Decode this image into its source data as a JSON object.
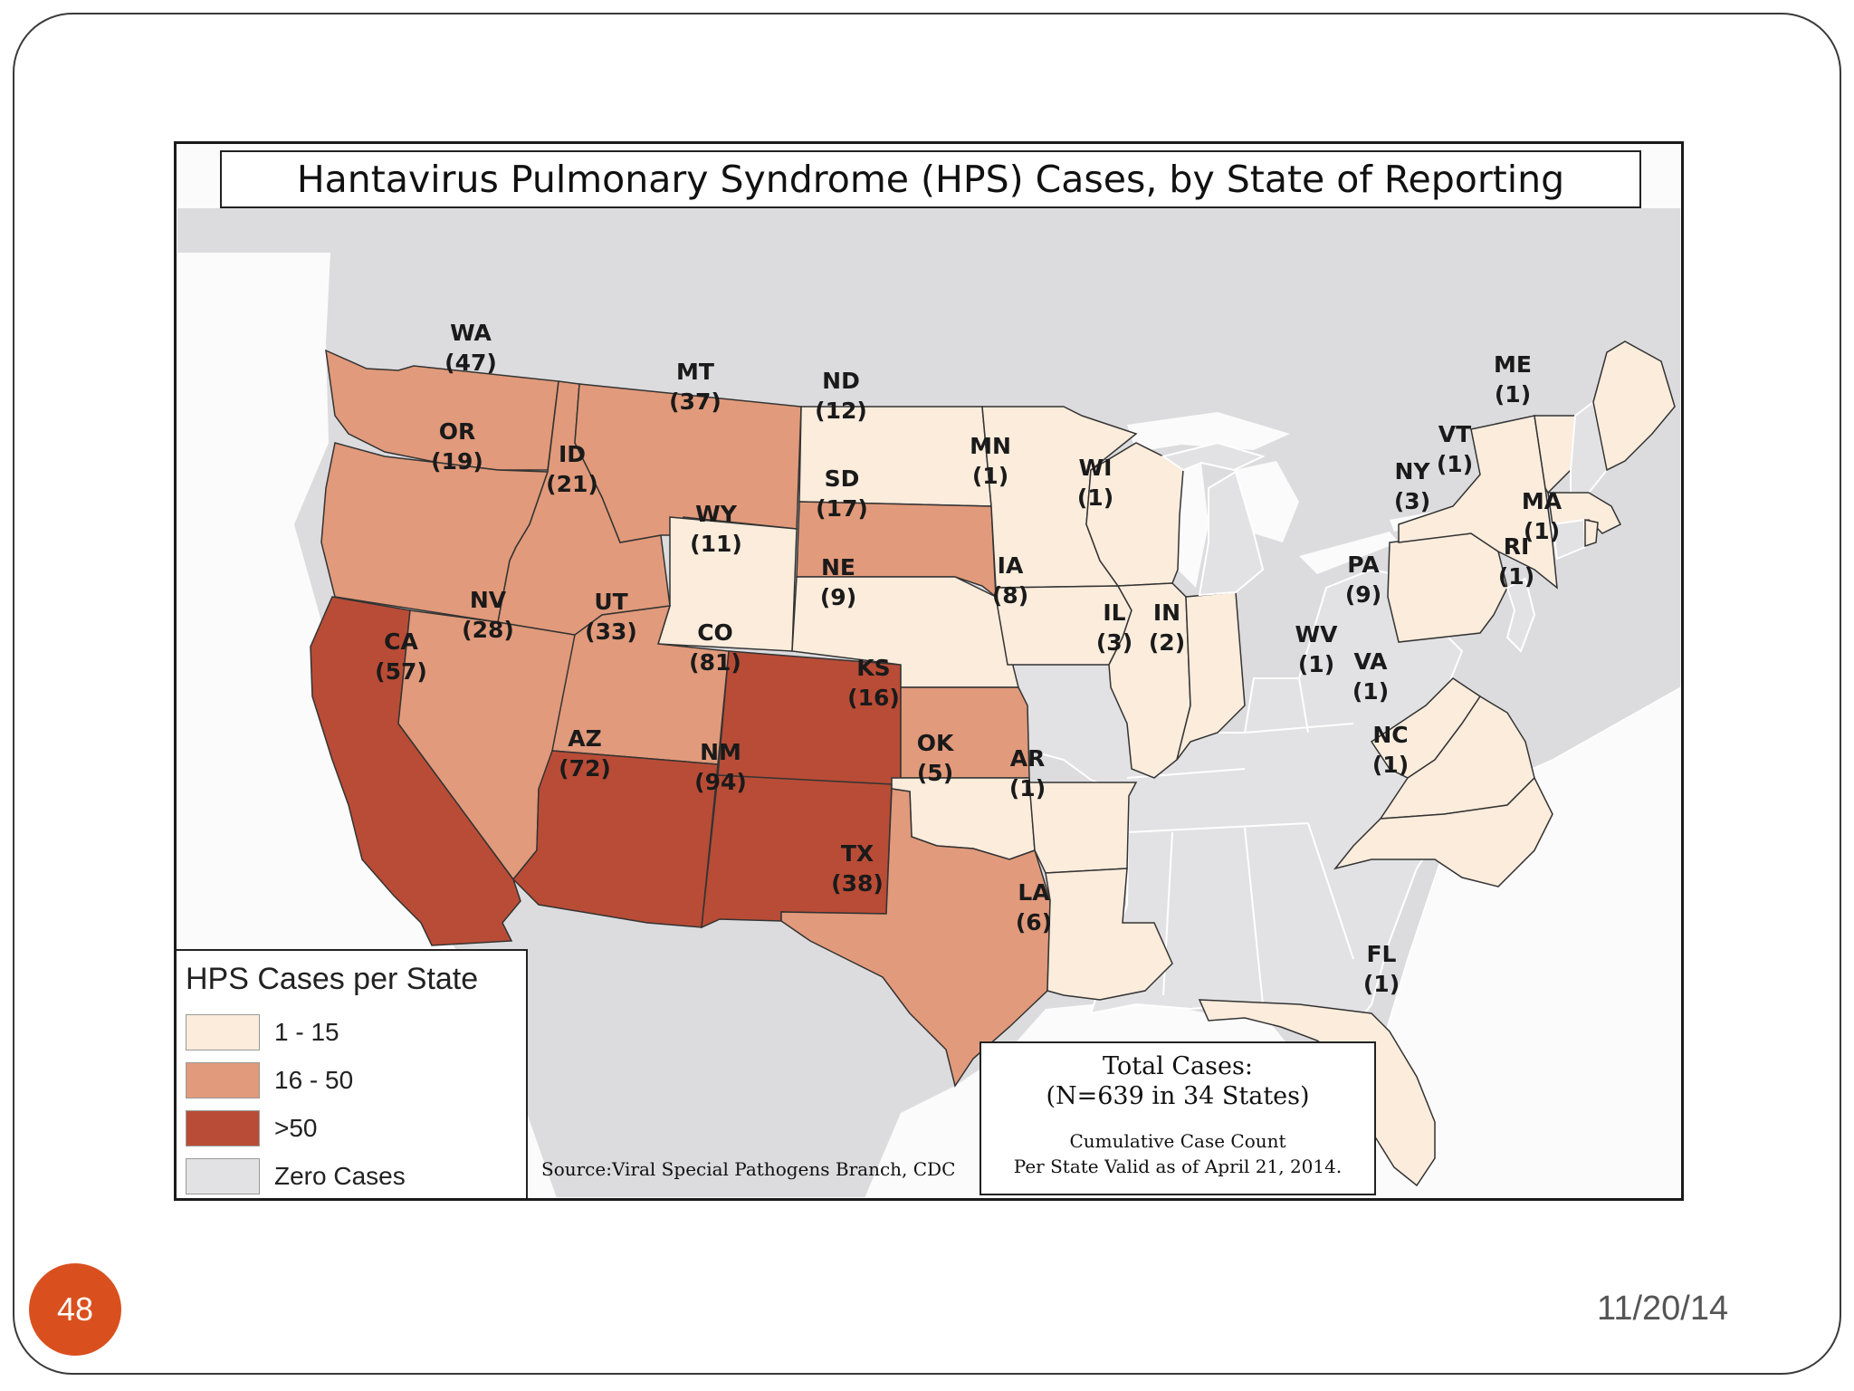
{
  "slide": {
    "number": "48",
    "date": "11/20/14"
  },
  "map": {
    "title": "Hantavirus Pulmonary Syndrome (HPS) Cases, by State of Reporting",
    "colors": {
      "low": "#fbecdc",
      "mid": "#e19a7b",
      "high": "#b94c36",
      "zero": "#e2e2e4",
      "background_land": "#dcdcde",
      "water": "#fbfbfb"
    },
    "legend": {
      "title": "HPS Cases per State",
      "items": [
        {
          "label": "1 - 15",
          "color": "#fbecdc"
        },
        {
          "label": "16 - 50",
          "color": "#e19a7b"
        },
        {
          "label": ">50",
          "color": "#b94c36"
        },
        {
          "label": "Zero Cases",
          "color": "#e2e2e4"
        }
      ]
    },
    "source": "Source:Viral Special Pathogens Branch, CDC",
    "totals": {
      "line1": "Total Cases:",
      "line2": "(N=639 in 34 States)",
      "line3": "Cumulative Case Count",
      "line4": "Per State Valid as of April 21, 2014."
    },
    "states": [
      {
        "abbr": "WA",
        "count": "(47)",
        "category": "mid"
      },
      {
        "abbr": "OR",
        "count": "(19)",
        "category": "mid"
      },
      {
        "abbr": "CA",
        "count": "(57)",
        "category": "high"
      },
      {
        "abbr": "NV",
        "count": "(28)",
        "category": "mid"
      },
      {
        "abbr": "ID",
        "count": "(21)",
        "category": "mid"
      },
      {
        "abbr": "MT",
        "count": "(37)",
        "category": "mid"
      },
      {
        "abbr": "WY",
        "count": "(11)",
        "category": "low"
      },
      {
        "abbr": "UT",
        "count": "(33)",
        "category": "mid"
      },
      {
        "abbr": "AZ",
        "count": "(72)",
        "category": "high"
      },
      {
        "abbr": "CO",
        "count": "(81)",
        "category": "high"
      },
      {
        "abbr": "NM",
        "count": "(94)",
        "category": "high"
      },
      {
        "abbr": "ND",
        "count": "(12)",
        "category": "low"
      },
      {
        "abbr": "SD",
        "count": "(17)",
        "category": "mid"
      },
      {
        "abbr": "NE",
        "count": "(9)",
        "category": "low"
      },
      {
        "abbr": "KS",
        "count": "(16)",
        "category": "mid"
      },
      {
        "abbr": "OK",
        "count": "(5)",
        "category": "low"
      },
      {
        "abbr": "TX",
        "count": "(38)",
        "category": "mid"
      },
      {
        "abbr": "MN",
        "count": "(1)",
        "category": "low"
      },
      {
        "abbr": "IA",
        "count": "(8)",
        "category": "low"
      },
      {
        "abbr": "AR",
        "count": "(1)",
        "category": "low"
      },
      {
        "abbr": "LA",
        "count": "(6)",
        "category": "low"
      },
      {
        "abbr": "WI",
        "count": "(1)",
        "category": "low"
      },
      {
        "abbr": "IL",
        "count": "(3)",
        "category": "low"
      },
      {
        "abbr": "IN",
        "count": "(2)",
        "category": "low"
      },
      {
        "abbr": "WV",
        "count": "(1)",
        "category": "low"
      },
      {
        "abbr": "VA",
        "count": "(1)",
        "category": "low"
      },
      {
        "abbr": "NC",
        "count": "(1)",
        "category": "low"
      },
      {
        "abbr": "PA",
        "count": "(9)",
        "category": "low"
      },
      {
        "abbr": "NY",
        "count": "(3)",
        "category": "low"
      },
      {
        "abbr": "VT",
        "count": "(1)",
        "category": "low"
      },
      {
        "abbr": "ME",
        "count": "(1)",
        "category": "low"
      },
      {
        "abbr": "MA",
        "count": "(1)",
        "category": "low"
      },
      {
        "abbr": "RI",
        "count": "(1)",
        "category": "low"
      },
      {
        "abbr": "FL",
        "count": "(1)",
        "category": "low"
      }
    ]
  }
}
